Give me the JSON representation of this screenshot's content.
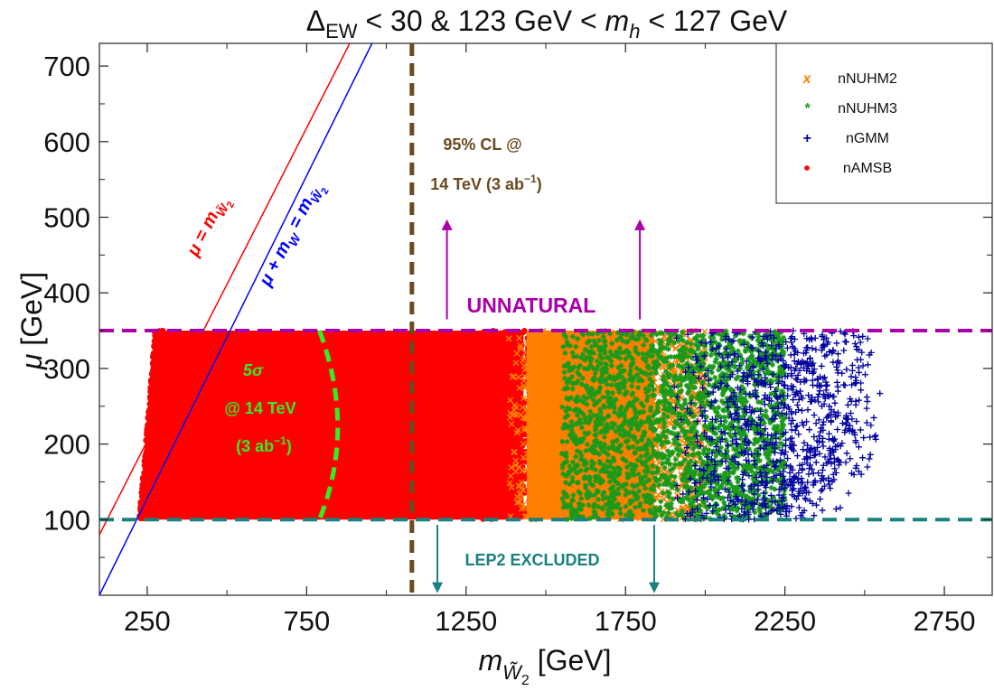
{
  "chart_data": {
    "type": "scatter",
    "title": {
      "delta": "Δ",
      "delta_sub": "EW",
      "part1": " < 30   &   123 GeV < ",
      "m": "m",
      "m_sub": "h",
      "part2": " < 127 GeV"
    },
    "xlabel": {
      "m": "m",
      "sub": "W̃",
      "sub2": "2",
      "unit": " [GeV]"
    },
    "ylabel": {
      "mu": "μ",
      "unit": " [GeV]"
    },
    "xlim": [
      100,
      2900
    ],
    "ylim": [
      0,
      730
    ],
    "xticks": [
      250,
      750,
      1250,
      1750,
      2250,
      2750
    ],
    "xtick_labels": [
      "250",
      "750",
      "1250",
      "1750",
      "2250",
      "2750"
    ],
    "yticks": [
      100,
      200,
      300,
      400,
      500,
      600,
      700
    ],
    "ytick_labels": [
      "100",
      "200",
      "300",
      "400",
      "500",
      "600",
      "700"
    ],
    "legend": [
      {
        "marker": "x",
        "symbol": "x",
        "label": "nNUHM2",
        "color": "#ff8000"
      },
      {
        "marker": "*",
        "symbol": "*",
        "label": "nNUHM3",
        "color": "#1a9a1a"
      },
      {
        "marker": "+",
        "symbol": "+",
        "label": "nGMM",
        "color": "#0000a0"
      },
      {
        "marker": "•",
        "symbol": "dot",
        "label": "nAMSB",
        "color": "#ff0000"
      }
    ],
    "series": [
      {
        "name": "nAMSB",
        "color": "#ff0000",
        "x_range": [
          260,
          1460
        ],
        "y_range": [
          100,
          350
        ],
        "x_tail_max": 1470
      },
      {
        "name": "nNUHM2",
        "color": "#ff8000",
        "x_range": [
          1100,
          2000
        ],
        "y_range": [
          100,
          350
        ]
      },
      {
        "name": "nNUHM3",
        "color": "#1a9a1a",
        "x_range": [
          1450,
          2250
        ],
        "y_range": [
          100,
          350
        ]
      },
      {
        "name": "nGMM",
        "color": "#0000a0",
        "x_range": [
          1700,
          2560
        ],
        "y_range": [
          100,
          350
        ]
      }
    ],
    "lines": {
      "mu_eq_mw2": {
        "label": "μ = m",
        "sub": "W̃",
        "sub2": "2",
        "color": "#ff0000",
        "x_at_y0": 80,
        "slope": 1.0
      },
      "mu_plus_mw": {
        "label": "μ + m",
        "sub_w": "W",
        "eq": " = m",
        "sub": "W̃",
        "sub2": "2",
        "color": "#0000ff",
        "x_at_y0": 100,
        "slope": 1.0
      },
      "unnatural_y": 350,
      "unnatural_label": "UNNATURAL",
      "unnatural_color": "#aa00aa",
      "lep2_y": 100,
      "lep2_label": "LEP2 EXCLUDED",
      "lep2_color": "#1a8080",
      "cl95_x": 1080,
      "cl95_color": "#6b4a20",
      "cl95_line1": "95% CL @",
      "cl95_line2a": "14 TeV (3 ab",
      "cl95_line2sup": "−1",
      "cl95_line2b": ")",
      "five_sigma_color": "#33ee22",
      "five_sigma_label": "5σ",
      "five_sigma_line2": "@ 14 TeV",
      "five_sigma_line3a": "(3 ab",
      "five_sigma_line3sup": "−1",
      "five_sigma_line3b": ")"
    }
  }
}
